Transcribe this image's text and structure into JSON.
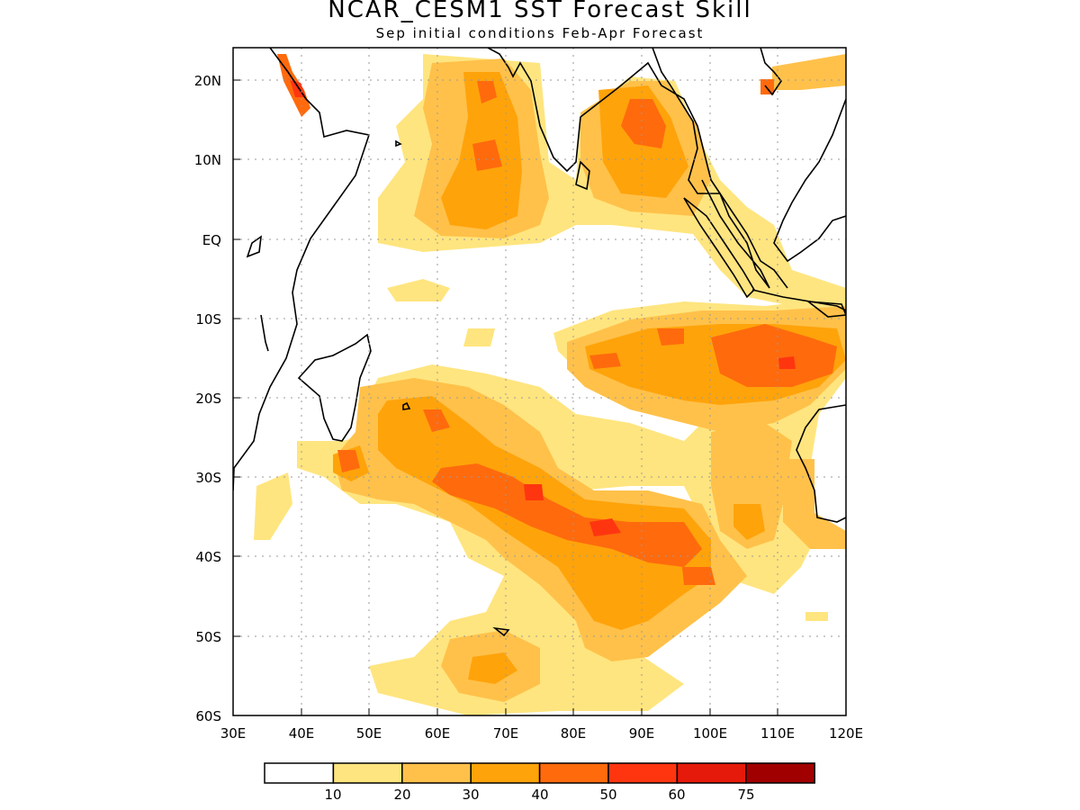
{
  "title": "NCAR_CESM1  SST Forecast Skill",
  "subtitle": "Sep initial conditions  Feb-Apr Forecast",
  "axes": {
    "lon_labels": [
      "30E",
      "40E",
      "50E",
      "60E",
      "70E",
      "80E",
      "90E",
      "100E",
      "110E",
      "120E"
    ],
    "lat_labels": [
      "20N",
      "10N",
      "EQ",
      "10S",
      "20S",
      "30S",
      "40S",
      "50S",
      "60S"
    ]
  },
  "colorbar": {
    "colors": [
      "#ffffff",
      "#ffe57f",
      "#ffc14a",
      "#ffa30a",
      "#ff6a0d",
      "#ff3510",
      "#e61a0a",
      "#a10000"
    ],
    "labels": [
      "10",
      "20",
      "30",
      "40",
      "50",
      "60",
      "75"
    ]
  }
}
